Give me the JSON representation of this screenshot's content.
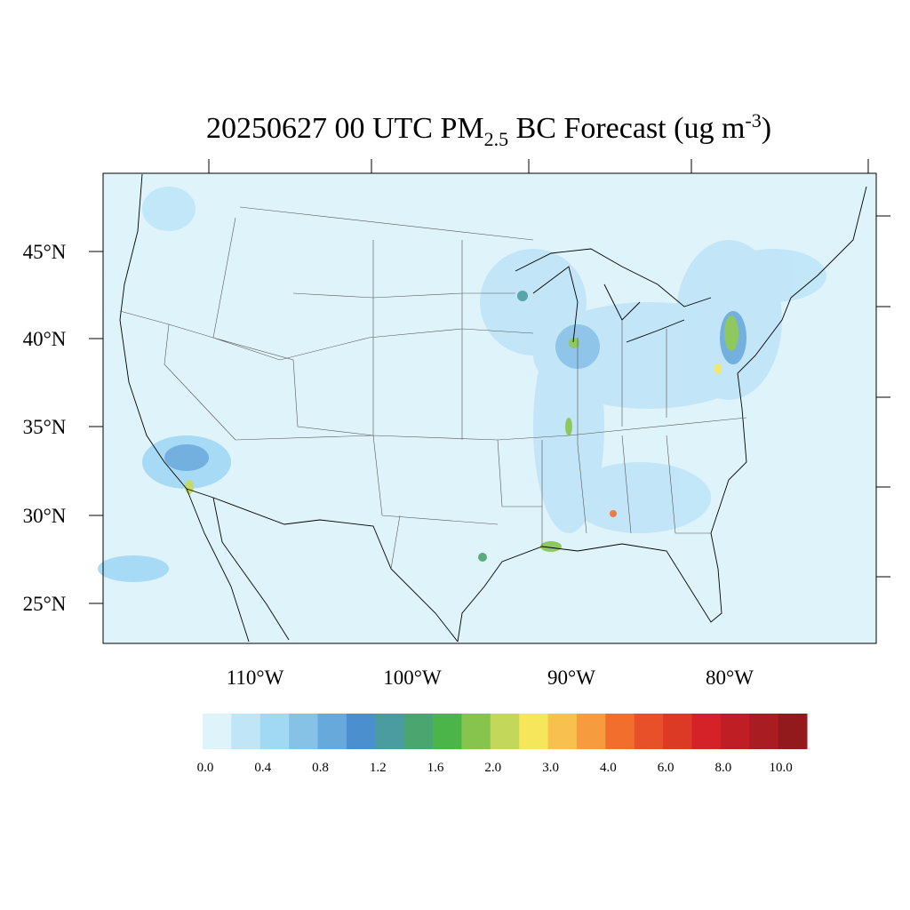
{
  "title": {
    "before": "20250627 00 UTC PM",
    "subscript": "2.5",
    "middle": " BC Forecast (ug m",
    "superscript": "-3",
    "after": ")"
  },
  "lat_labels": [
    "45°N",
    "40°N",
    "35°N",
    "30°N",
    "25°N"
  ],
  "lon_labels": [
    "110°W",
    "100°W",
    "90°W",
    "80°W"
  ],
  "colorbar": {
    "labels": [
      "0.0",
      "0.4",
      "0.8",
      "1.2",
      "1.6",
      "2.0",
      "3.0",
      "4.0",
      "6.0",
      "8.0",
      "10.0"
    ],
    "colors": [
      "#dff3fb",
      "#bfe5f7",
      "#a1d8f4",
      "#86c1e6",
      "#68a9dc",
      "#4b8fcf",
      "#4a9ca0",
      "#4aa56e",
      "#4cb54a",
      "#86c44e",
      "#c3d85a",
      "#f6e65c",
      "#f8c04c",
      "#f69b3e",
      "#f26e2d",
      "#e85029",
      "#dd3a26",
      "#d52229",
      "#bf1e25",
      "#a81c22",
      "#921a1d"
    ]
  }
}
